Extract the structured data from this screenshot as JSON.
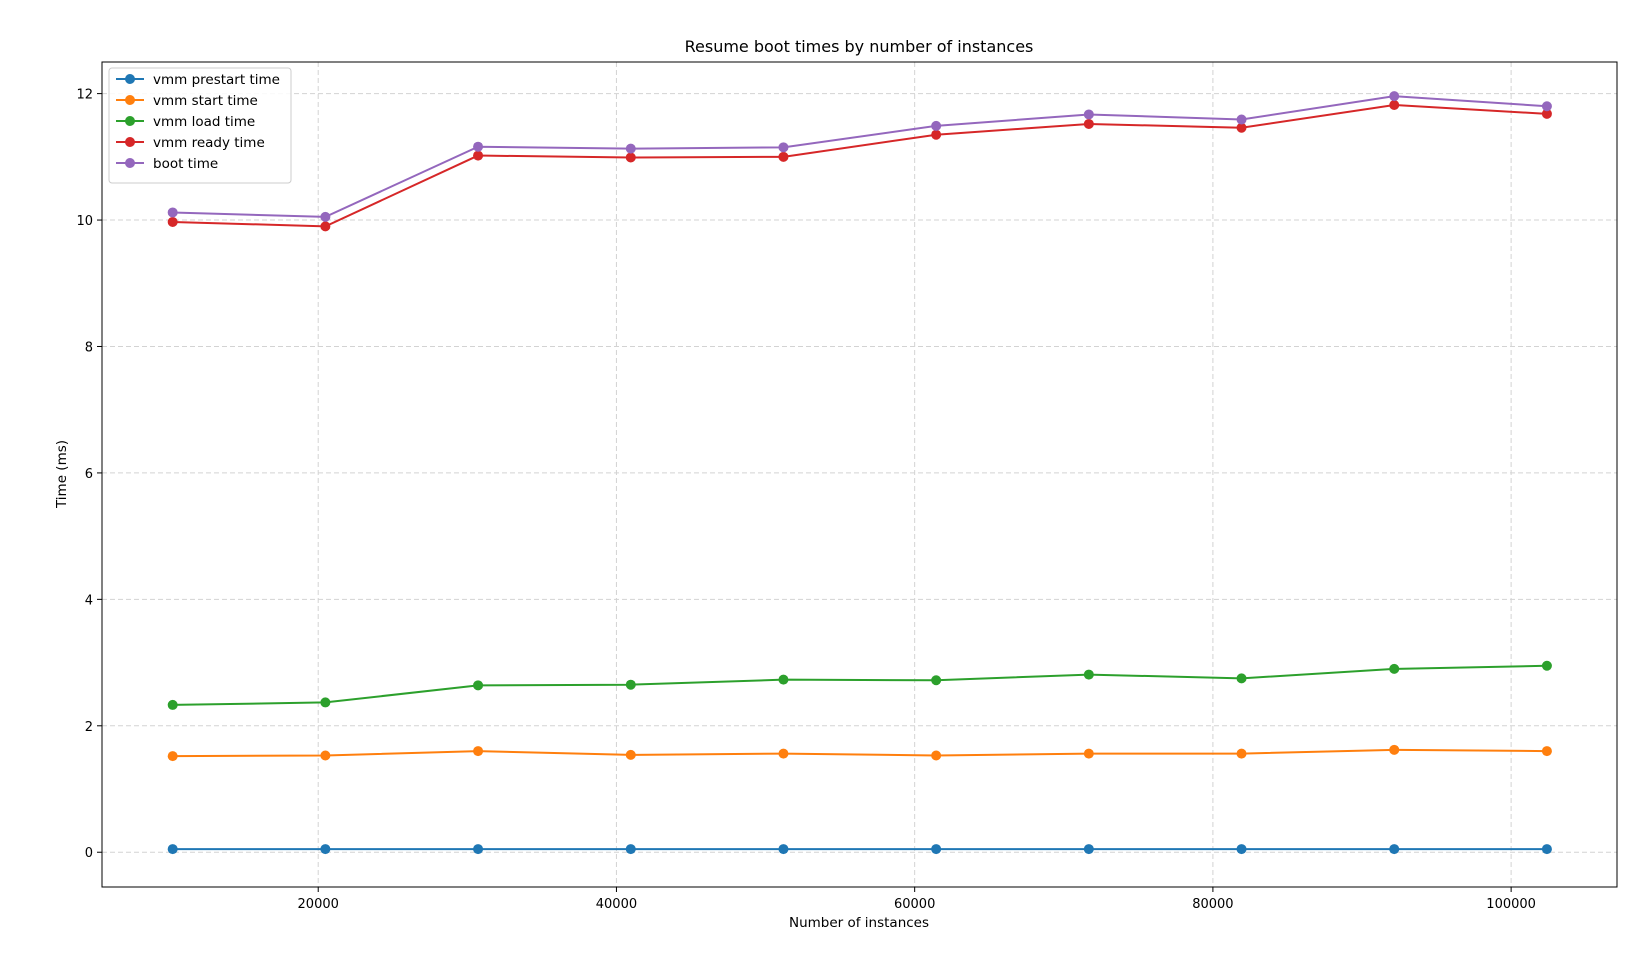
{
  "chart_data": {
    "type": "line",
    "title": "Resume boot times by number of instances",
    "xlabel": "Number of instances",
    "ylabel": "Time (ms)",
    "xlim": [
      5500,
      107100
    ],
    "ylim": [
      -0.55,
      12.5
    ],
    "xticks": [
      20000,
      40000,
      60000,
      80000,
      100000
    ],
    "yticks": [
      0,
      2,
      4,
      6,
      8,
      10,
      12
    ],
    "grid": true,
    "legend_position": "top-left",
    "x": [
      10240,
      20480,
      30720,
      40960,
      51200,
      61440,
      71680,
      81920,
      92160,
      102400
    ],
    "series": [
      {
        "name": "vmm prestart time",
        "color": "#1f77b4",
        "values": [
          0.05,
          0.05,
          0.05,
          0.05,
          0.05,
          0.05,
          0.05,
          0.05,
          0.05,
          0.05
        ]
      },
      {
        "name": "vmm start time",
        "color": "#ff7f0e",
        "values": [
          1.52,
          1.53,
          1.6,
          1.54,
          1.56,
          1.53,
          1.56,
          1.56,
          1.62,
          1.6
        ]
      },
      {
        "name": "vmm load time",
        "color": "#2ca02c",
        "values": [
          2.33,
          2.37,
          2.64,
          2.65,
          2.73,
          2.72,
          2.81,
          2.75,
          2.9,
          2.95
        ]
      },
      {
        "name": "vmm ready time",
        "color": "#d62728",
        "values": [
          9.97,
          9.9,
          11.02,
          10.99,
          11.0,
          11.35,
          11.52,
          11.46,
          11.82,
          11.68
        ]
      },
      {
        "name": "boot time",
        "color": "#9467bd",
        "values": [
          10.12,
          10.05,
          11.16,
          11.13,
          11.15,
          11.49,
          11.67,
          11.59,
          11.96,
          11.8
        ]
      }
    ]
  }
}
